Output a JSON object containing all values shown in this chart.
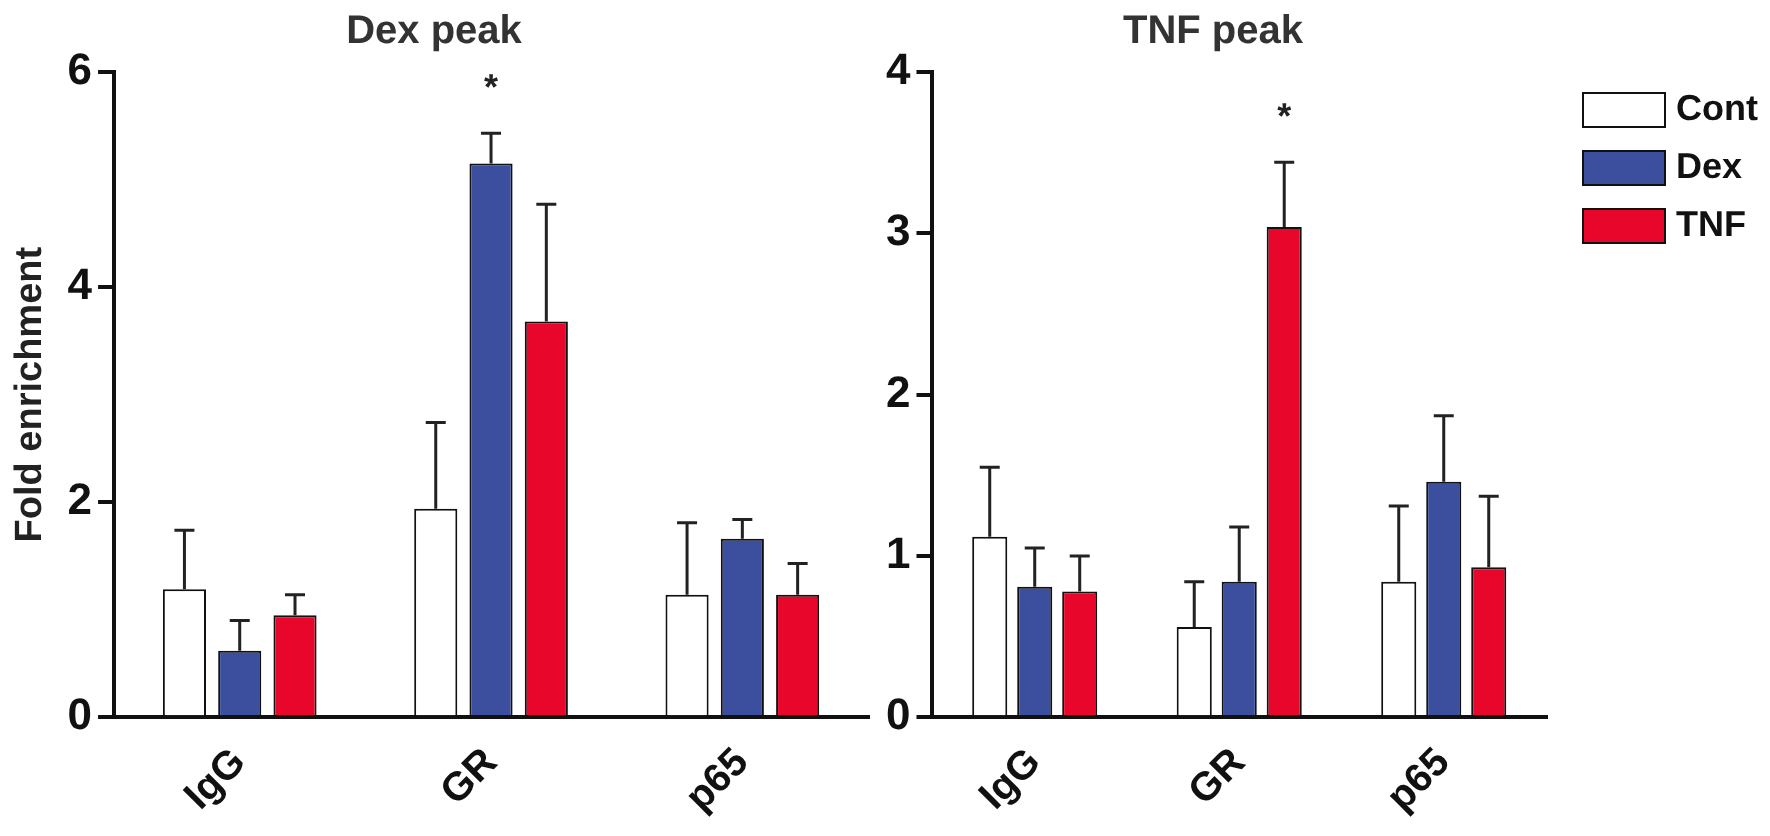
{
  "chart_data": [
    {
      "type": "bar",
      "title": "Dex peak",
      "ylabel": "Fold enrichment",
      "categories": [
        "IgG",
        "GR",
        "p65"
      ],
      "ylim": [
        0,
        6
      ],
      "yticks": [
        0,
        2,
        4,
        6
      ],
      "grid": false,
      "legend": false,
      "annotations": [
        "*"
      ],
      "series": [
        {
          "color": "#ffffff",
          "values": [
            1.19,
            1.94,
            1.14
          ],
          "errors": [
            [
              1.19,
              1.74
            ],
            [
              1.94,
              2.74
            ],
            [
              1.14,
              1.81
            ]
          ]
        },
        {
          "color": "#3c4f9e",
          "values": [
            0.62,
            5.15,
            1.66
          ],
          "errors": [
            [
              0.62,
              0.9
            ],
            [
              5.15,
              5.43
            ],
            [
              1.66,
              1.84
            ]
          ]
        },
        {
          "color": "#e8072a",
          "values": [
            0.95,
            3.68,
            1.14
          ],
          "errors": [
            [
              0.95,
              1.14
            ],
            [
              3.68,
              4.77
            ],
            [
              1.14,
              1.43
            ]
          ]
        }
      ]
    },
    {
      "type": "bar",
      "title": "TNF peak",
      "categories": [
        "IgG",
        "GR",
        "p65"
      ],
      "ylim": [
        0,
        4
      ],
      "yticks": [
        0,
        1,
        2,
        3,
        4
      ],
      "grid": false,
      "legend": "top right",
      "annotations": [
        "*"
      ],
      "series": [
        {
          "name": "Cont",
          "color": "#ffffff",
          "values": [
            1.12,
            0.56,
            0.84
          ],
          "errors": [
            [
              1.12,
              1.55
            ],
            [
              0.56,
              0.84
            ],
            [
              0.84,
              1.31
            ]
          ]
        },
        {
          "name": "Dex",
          "color": "#3c4f9e",
          "values": [
            0.81,
            0.84,
            1.46
          ],
          "errors": [
            [
              0.81,
              1.05
            ],
            [
              0.84,
              1.18
            ],
            [
              1.46,
              1.87
            ]
          ]
        },
        {
          "name": "TNF",
          "color": "#e8072a",
          "values": [
            0.78,
            3.04,
            0.93
          ],
          "errors": [
            [
              0.78,
              1.0
            ],
            [
              3.04,
              3.44
            ],
            [
              0.93,
              1.37
            ]
          ]
        }
      ]
    }
  ]
}
